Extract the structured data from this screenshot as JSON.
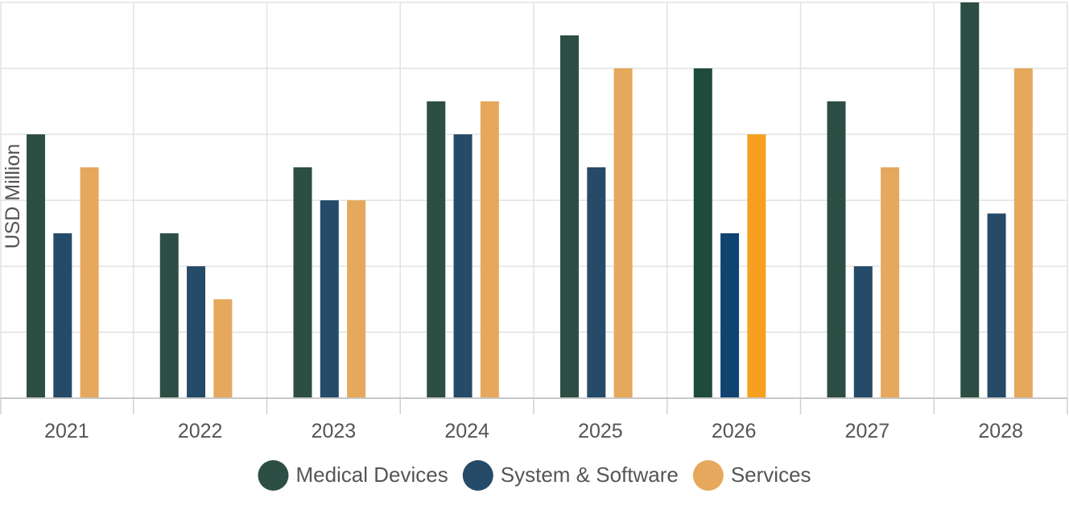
{
  "chart_data": {
    "type": "bar",
    "title": "",
    "xlabel": "",
    "ylabel": "USD Million",
    "categories": [
      "2021",
      "2022",
      "2023",
      "2024",
      "2025",
      "2026",
      "2027",
      "2028"
    ],
    "ylim": [
      0,
      12
    ],
    "grid": true,
    "legend_position": "bottom-center",
    "series": [
      {
        "name": "Medical Devices",
        "color": "#2d4e44",
        "values": [
          8,
          5,
          7,
          9,
          11,
          10,
          9,
          12
        ]
      },
      {
        "name": "System & Software",
        "color": "#254b69",
        "values": [
          5,
          4,
          6,
          8,
          7,
          5,
          4,
          5.6
        ]
      },
      {
        "name": "Services",
        "color": "#e6a85c",
        "values": [
          7,
          3,
          6,
          9,
          10,
          8,
          7,
          10
        ]
      }
    ],
    "highlight": {
      "category": "2026",
      "colors": [
        "#1f4a3e",
        "#0f4470",
        "#f7a020"
      ]
    }
  }
}
